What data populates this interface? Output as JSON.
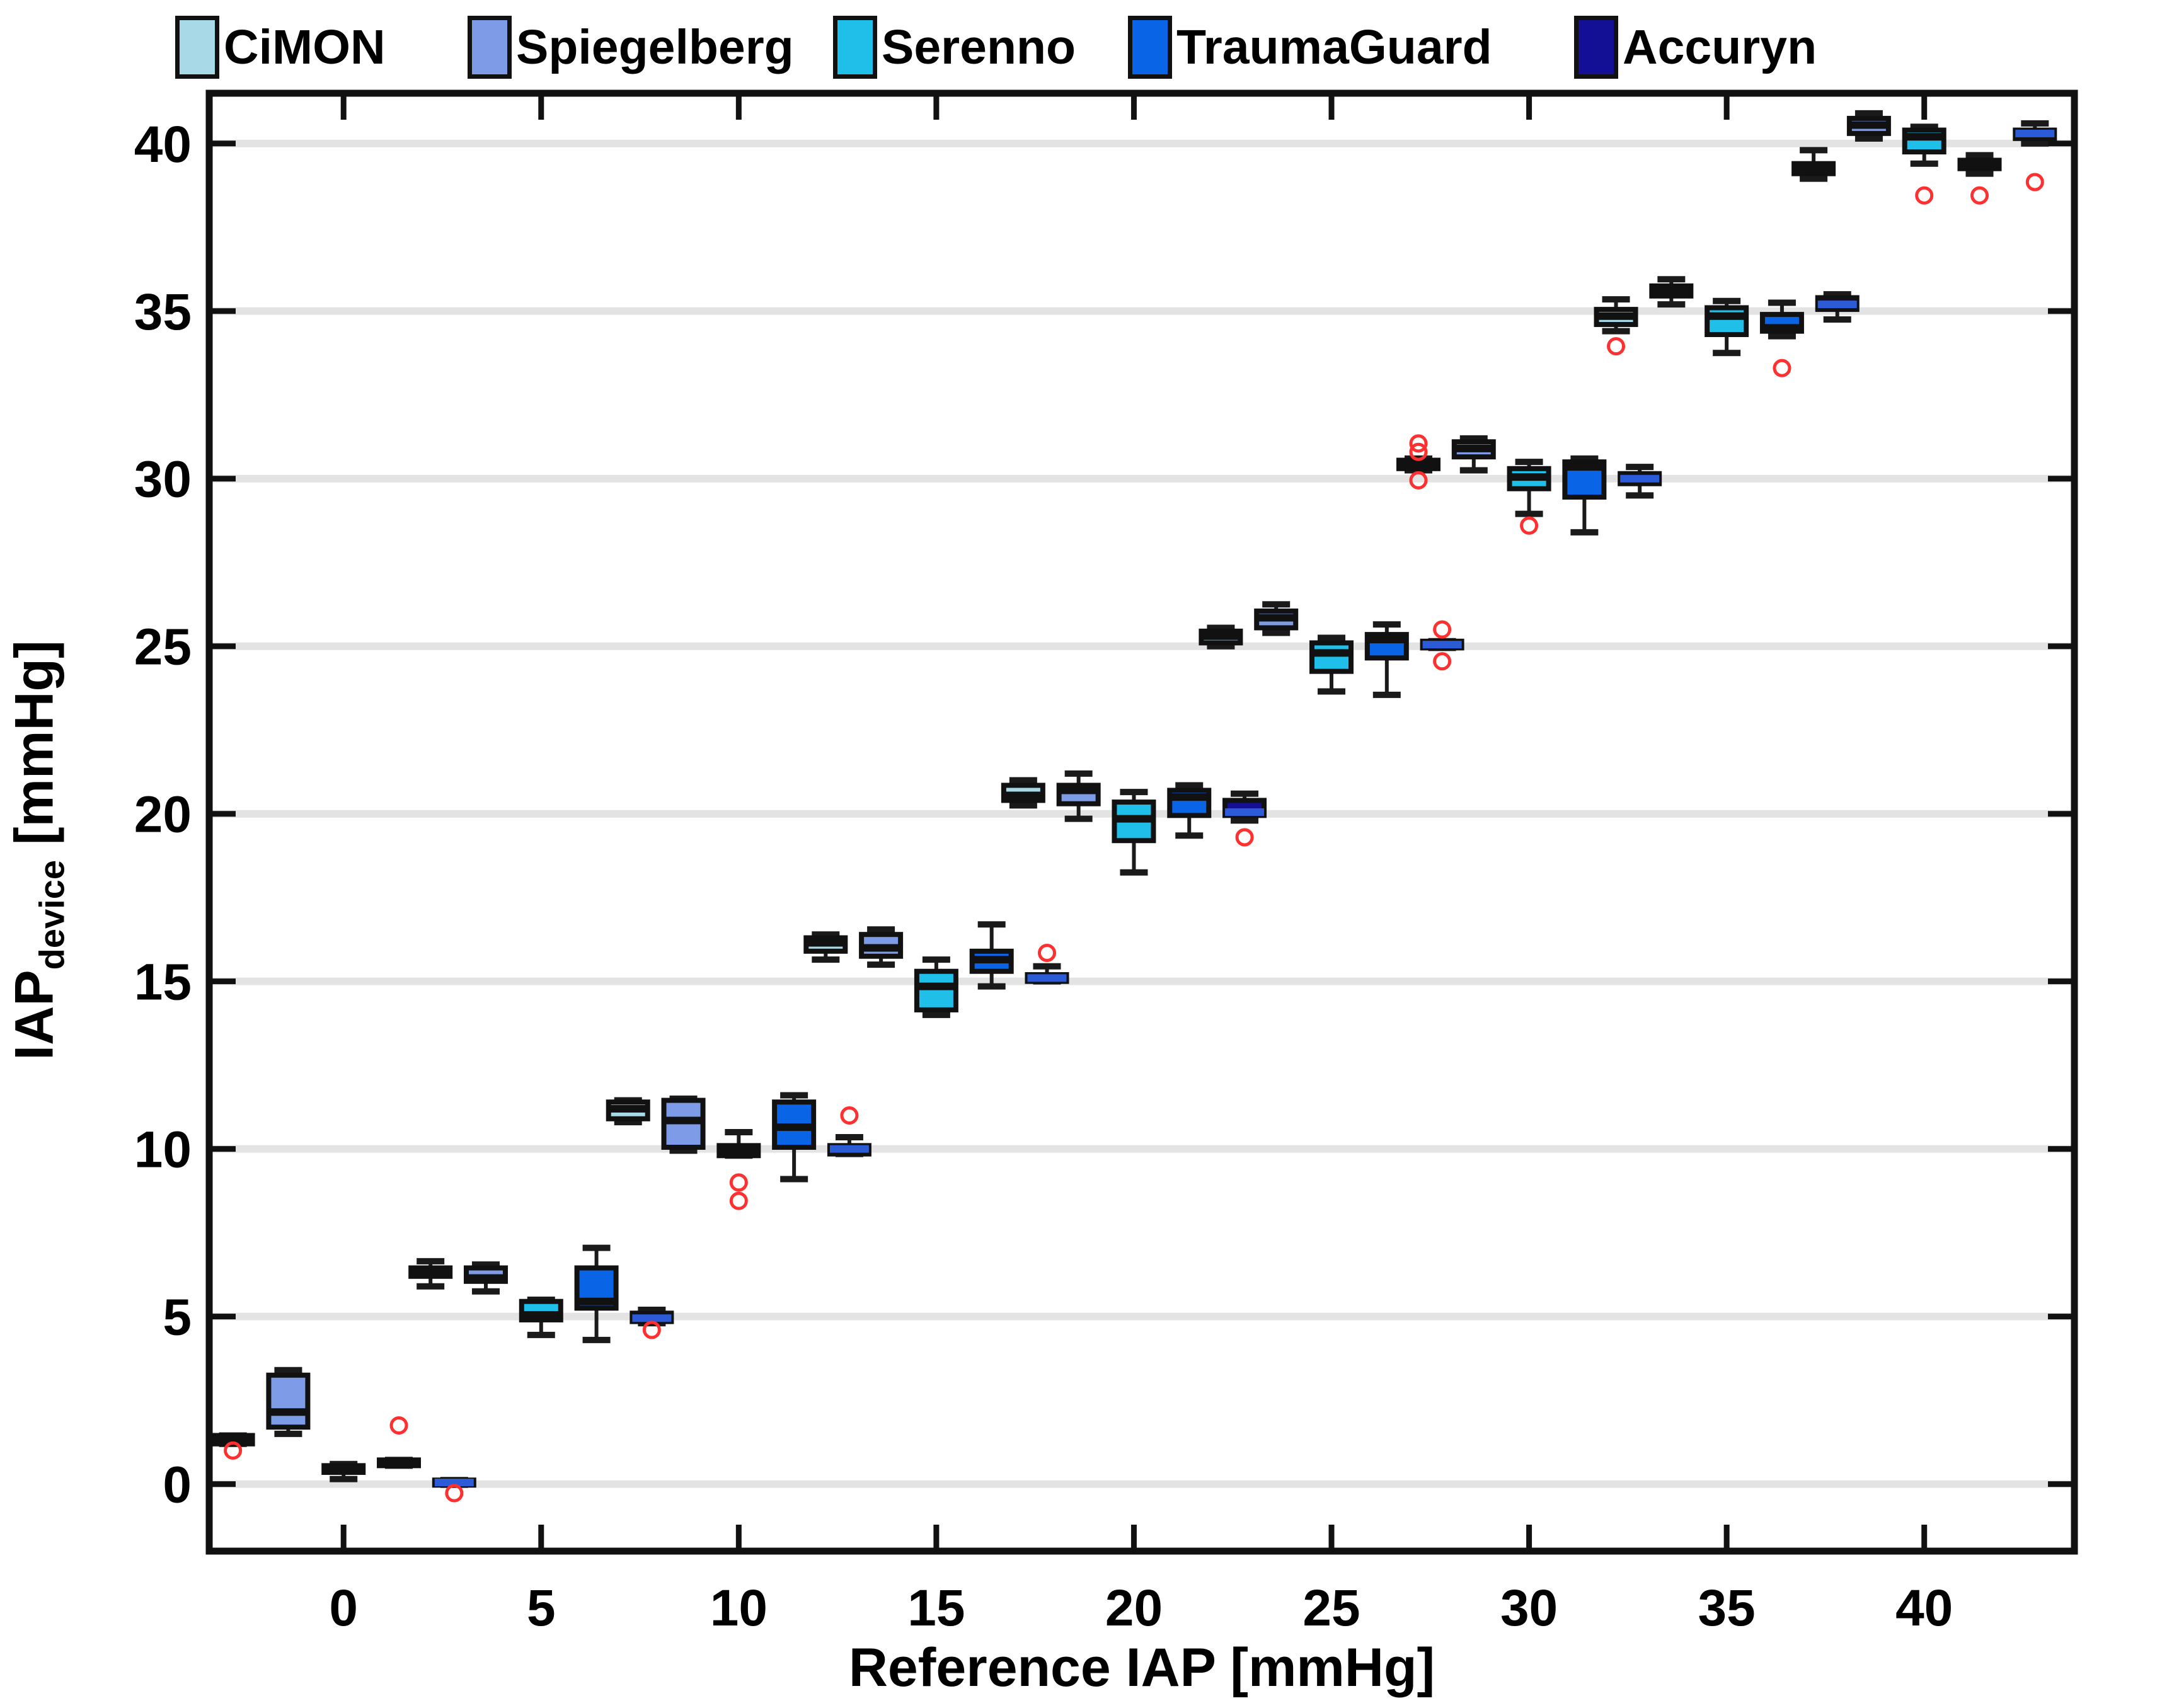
{
  "legend": {
    "items": [
      {
        "label": "CiMON",
        "color": "#A7D9E6"
      },
      {
        "label": "Spiegelberg",
        "color": "#7E9BE8"
      },
      {
        "label": "Serenno",
        "color": "#1FBFEA"
      },
      {
        "label": "TraumaGuard",
        "color": "#0A64E6"
      },
      {
        "label": "Accuryn",
        "color": "#131095"
      }
    ]
  },
  "y_axis": {
    "prefix": "IAP",
    "sub": "device",
    "suffix": " [mmHg]",
    "ticks": [
      0,
      5,
      10,
      15,
      20,
      25,
      30,
      35,
      40
    ]
  },
  "x_axis": {
    "label": "Reference IAP [mmHg]",
    "ticks": [
      0,
      5,
      10,
      15,
      20,
      25,
      30,
      35,
      40
    ]
  },
  "chart_data": {
    "type": "boxplot",
    "title": "",
    "xlabel": "Reference IAP [mmHg]",
    "ylabel": "IAP_device [mmHg]",
    "categories": [
      0,
      5,
      10,
      15,
      20,
      25,
      30,
      35,
      40
    ],
    "ylim": [
      -2,
      41.5
    ],
    "xlim": [
      -3.4,
      43.8
    ],
    "grid": "horizontal",
    "gridline_color": "#E3E3E3",
    "outlier_color": "#FF3030",
    "box_edge_color": "#111111",
    "group_offset_step": 1.4,
    "series": [
      {
        "name": "CiMON",
        "color": "#A7D9E6",
        "median_color": "#111111",
        "boxes": [
          {
            "ref": 0,
            "q1": 1.2,
            "median": 1.3,
            "q3": 1.45,
            "whisker_low": 1.2,
            "whisker_high": 1.45,
            "outliers": [
              1.0
            ]
          },
          {
            "ref": 5,
            "q1": 6.2,
            "median": 6.3,
            "q3": 6.45,
            "whisker_low": 5.9,
            "whisker_high": 6.65,
            "outliers": []
          },
          {
            "ref": 10,
            "q1": 10.9,
            "median": 11.2,
            "q3": 11.4,
            "whisker_low": 10.8,
            "whisker_high": 11.45,
            "outliers": []
          },
          {
            "ref": 15,
            "q1": 15.9,
            "median": 16.15,
            "q3": 16.3,
            "whisker_low": 15.65,
            "whisker_high": 16.4,
            "outliers": []
          },
          {
            "ref": 20,
            "q1": 20.4,
            "median": 20.55,
            "q3": 20.85,
            "whisker_low": 20.25,
            "whisker_high": 21.0,
            "outliers": []
          },
          {
            "ref": 25,
            "q1": 25.1,
            "median": 25.3,
            "q3": 25.45,
            "whisker_low": 25.0,
            "whisker_high": 25.55,
            "outliers": []
          },
          {
            "ref": 30,
            "q1": 30.3,
            "median": 30.45,
            "q3": 30.55,
            "whisker_low": 30.25,
            "whisker_high": 30.6,
            "outliers": [
              31.05,
              30.8,
              29.95
            ]
          },
          {
            "ref": 35,
            "q1": 34.6,
            "median": 34.85,
            "q3": 35.05,
            "whisker_low": 34.4,
            "whisker_high": 35.35,
            "outliers": [
              33.95
            ]
          },
          {
            "ref": 40,
            "q1": 39.1,
            "median": 39.25,
            "q3": 39.4,
            "whisker_low": 38.95,
            "whisker_high": 39.8,
            "outliers": []
          }
        ]
      },
      {
        "name": "Spiegelberg",
        "color": "#7E9BE8",
        "median_color": "#111111",
        "boxes": [
          {
            "ref": 0,
            "q1": 1.7,
            "median": 2.15,
            "q3": 3.25,
            "whisker_low": 1.5,
            "whisker_high": 3.4,
            "outliers": []
          },
          {
            "ref": 5,
            "q1": 6.05,
            "median": 6.15,
            "q3": 6.45,
            "whisker_low": 5.75,
            "whisker_high": 6.55,
            "outliers": []
          },
          {
            "ref": 10,
            "q1": 10.05,
            "median": 10.85,
            "q3": 11.45,
            "whisker_low": 9.95,
            "whisker_high": 11.5,
            "outliers": []
          },
          {
            "ref": 15,
            "q1": 15.75,
            "median": 16.0,
            "q3": 16.4,
            "whisker_low": 15.5,
            "whisker_high": 16.55,
            "outliers": []
          },
          {
            "ref": 20,
            "q1": 20.3,
            "median": 20.7,
            "q3": 20.85,
            "whisker_low": 19.85,
            "whisker_high": 21.2,
            "outliers": []
          },
          {
            "ref": 25,
            "q1": 25.55,
            "median": 25.85,
            "q3": 26.05,
            "whisker_low": 25.4,
            "whisker_high": 26.25,
            "outliers": []
          },
          {
            "ref": 30,
            "q1": 30.65,
            "median": 30.9,
            "q3": 31.1,
            "whisker_low": 30.25,
            "whisker_high": 31.2,
            "outliers": []
          },
          {
            "ref": 35,
            "q1": 35.45,
            "median": 35.6,
            "q3": 35.75,
            "whisker_low": 35.2,
            "whisker_high": 35.95,
            "outliers": []
          },
          {
            "ref": 40,
            "q1": 40.3,
            "median": 40.55,
            "q3": 40.75,
            "whisker_low": 40.15,
            "whisker_high": 40.9,
            "outliers": []
          }
        ]
      },
      {
        "name": "Serenno",
        "color": "#1FBFEA",
        "median_color": "#111111",
        "boxes": [
          {
            "ref": 0,
            "q1": 0.35,
            "median": 0.45,
            "q3": 0.55,
            "whisker_low": 0.15,
            "whisker_high": 0.6,
            "outliers": []
          },
          {
            "ref": 5,
            "q1": 4.9,
            "median": 5.05,
            "q3": 5.45,
            "whisker_low": 4.45,
            "whisker_high": 5.5,
            "outliers": []
          },
          {
            "ref": 10,
            "q1": 9.8,
            "median": 9.95,
            "q3": 10.1,
            "whisker_low": 9.8,
            "whisker_high": 10.5,
            "outliers": [
              9.0,
              8.45
            ]
          },
          {
            "ref": 15,
            "q1": 14.15,
            "median": 14.85,
            "q3": 15.3,
            "whisker_low": 14.0,
            "whisker_high": 15.65,
            "outliers": []
          },
          {
            "ref": 20,
            "q1": 19.2,
            "median": 19.85,
            "q3": 20.35,
            "whisker_low": 18.25,
            "whisker_high": 20.65,
            "outliers": []
          },
          {
            "ref": 25,
            "q1": 24.25,
            "median": 24.8,
            "q3": 25.1,
            "whisker_low": 23.65,
            "whisker_high": 25.25,
            "outliers": []
          },
          {
            "ref": 30,
            "q1": 29.7,
            "median": 30.05,
            "q3": 30.3,
            "whisker_low": 28.95,
            "whisker_high": 30.5,
            "outliers": [
              28.6
            ]
          },
          {
            "ref": 35,
            "q1": 34.3,
            "median": 34.85,
            "q3": 35.1,
            "whisker_low": 33.75,
            "whisker_high": 35.3,
            "outliers": []
          },
          {
            "ref": 40,
            "q1": 39.75,
            "median": 40.2,
            "q3": 40.4,
            "whisker_low": 39.4,
            "whisker_high": 40.5,
            "outliers": [
              38.45
            ]
          }
        ]
      },
      {
        "name": "TraumaGuard",
        "color": "#0A64E6",
        "median_color": "#111111",
        "boxes": [
          {
            "ref": 0,
            "q1": 0.55,
            "median": 0.62,
            "q3": 0.72,
            "whisker_low": 0.55,
            "whisker_high": 0.72,
            "outliers": [
              1.75
            ]
          },
          {
            "ref": 5,
            "q1": 5.25,
            "median": 5.45,
            "q3": 6.45,
            "whisker_low": 4.3,
            "whisker_high": 7.05,
            "outliers": []
          },
          {
            "ref": 10,
            "q1": 10.05,
            "median": 10.65,
            "q3": 11.4,
            "whisker_low": 9.1,
            "whisker_high": 11.6,
            "outliers": []
          },
          {
            "ref": 15,
            "q1": 15.3,
            "median": 15.65,
            "q3": 15.9,
            "whisker_low": 14.85,
            "whisker_high": 16.7,
            "outliers": []
          },
          {
            "ref": 20,
            "q1": 19.95,
            "median": 20.5,
            "q3": 20.7,
            "whisker_low": 19.35,
            "whisker_high": 20.85,
            "outliers": []
          },
          {
            "ref": 25,
            "q1": 24.65,
            "median": 25.2,
            "q3": 25.35,
            "whisker_low": 23.55,
            "whisker_high": 25.65,
            "outliers": []
          },
          {
            "ref": 30,
            "q1": 29.45,
            "median": 30.35,
            "q3": 30.5,
            "whisker_low": 28.4,
            "whisker_high": 30.6,
            "outliers": []
          },
          {
            "ref": 35,
            "q1": 34.4,
            "median": 34.5,
            "q3": 34.9,
            "whisker_low": 34.25,
            "whisker_high": 35.25,
            "outliers": [
              33.3
            ]
          },
          {
            "ref": 40,
            "q1": 39.25,
            "median": 39.35,
            "q3": 39.5,
            "whisker_low": 39.1,
            "whisker_high": 39.65,
            "outliers": [
              38.45
            ]
          }
        ]
      },
      {
        "name": "Accuryn",
        "color": "#131095",
        "median_color": "#2B5BD7",
        "boxes": [
          {
            "ref": 0,
            "q1": -0.02,
            "median": 0.05,
            "q3": 0.12,
            "whisker_low": -0.02,
            "whisker_high": 0.12,
            "outliers": [
              -0.27
            ]
          },
          {
            "ref": 5,
            "q1": 4.85,
            "median": 4.95,
            "q3": 5.1,
            "whisker_low": 4.8,
            "whisker_high": 5.2,
            "outliers": [
              4.6
            ]
          },
          {
            "ref": 10,
            "q1": 9.85,
            "median": 10.0,
            "q3": 10.1,
            "whisker_low": 9.85,
            "whisker_high": 10.35,
            "outliers": [
              11.0
            ]
          },
          {
            "ref": 15,
            "q1": 15.0,
            "median": 15.1,
            "q3": 15.2,
            "whisker_low": 15.0,
            "whisker_high": 15.45,
            "outliers": [
              15.85
            ]
          },
          {
            "ref": 20,
            "q1": 19.95,
            "median": 20.05,
            "q3": 20.4,
            "whisker_low": 19.8,
            "whisker_high": 20.6,
            "outliers": [
              19.3
            ]
          },
          {
            "ref": 25,
            "q1": 24.95,
            "median": 25.05,
            "q3": 25.15,
            "whisker_low": 24.95,
            "whisker_high": 25.15,
            "outliers": [
              25.5,
              24.55
            ]
          },
          {
            "ref": 30,
            "q1": 29.85,
            "median": 30.0,
            "q3": 30.15,
            "whisker_low": 29.5,
            "whisker_high": 30.35,
            "outliers": []
          },
          {
            "ref": 35,
            "q1": 35.05,
            "median": 35.2,
            "q3": 35.4,
            "whisker_low": 34.75,
            "whisker_high": 35.5,
            "outliers": []
          },
          {
            "ref": 40,
            "q1": 40.15,
            "median": 40.3,
            "q3": 40.4,
            "whisker_low": 40.0,
            "whisker_high": 40.6,
            "outliers": [
              38.85
            ]
          }
        ]
      }
    ]
  }
}
